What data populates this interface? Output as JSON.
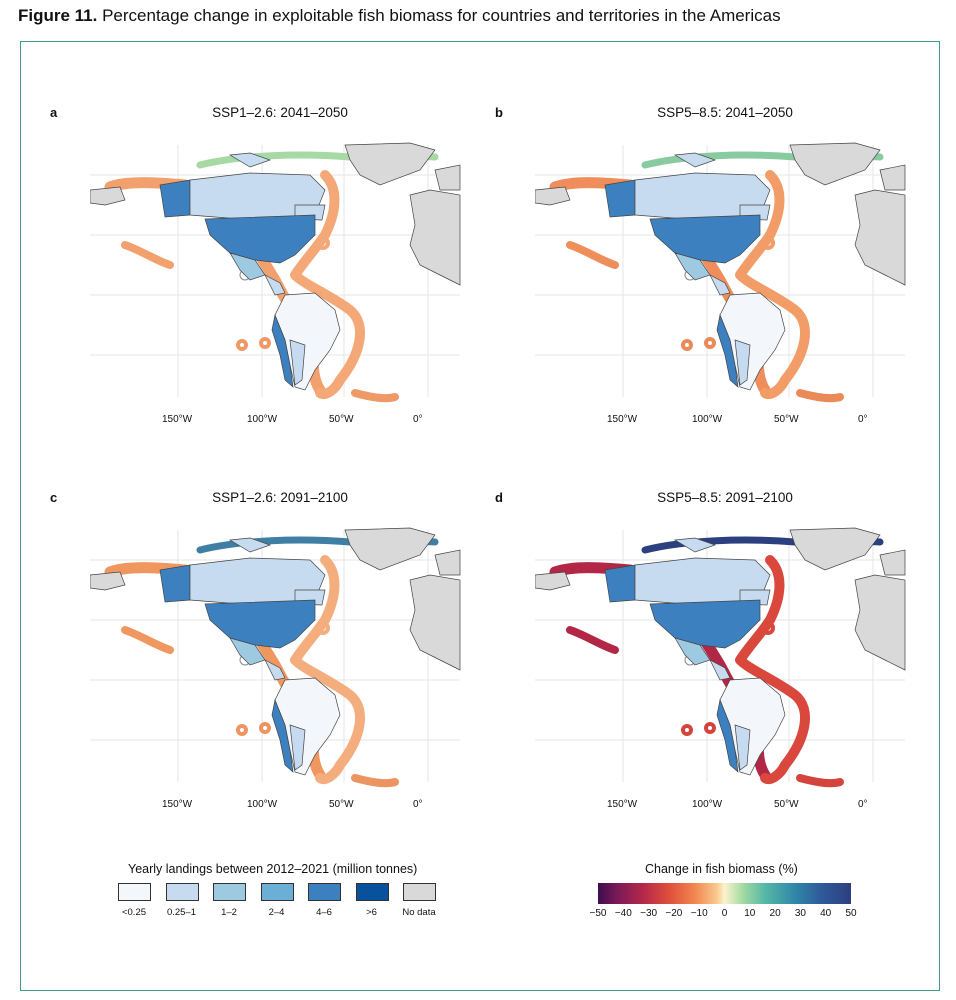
{
  "figure_title_bold": "Figure 11.",
  "figure_title_rest": " Percentage change in exploitable fish biomass for countries and territories in the Americas",
  "panels": [
    {
      "label": "a",
      "title": "SSP1–2.6: 2041–2050",
      "ring_colors": {
        "pacific": "#f2a06d",
        "atlantic": "#f4a877",
        "arctic": "#a6d9a4",
        "south": "#ee9a66"
      }
    },
    {
      "label": "b",
      "title": "SSP5–8.5: 2041–2050",
      "ring_colors": {
        "pacific": "#ef8e5a",
        "atlantic": "#f29d67",
        "arctic": "#89cba0",
        "south": "#ea8a58"
      }
    },
    {
      "label": "c",
      "title": "SSP1–2.6: 2091–2100",
      "ring_colors": {
        "pacific": "#f0975f",
        "atlantic": "#f4ad7d",
        "arctic": "#3f7fa3",
        "south": "#ec9462"
      }
    },
    {
      "label": "d",
      "title": "SSP5–8.5: 2091–2100",
      "ring_colors": {
        "pacific": "#b32746",
        "atlantic": "#d9473d",
        "arctic": "#2c3f7e",
        "south": "#d4443c"
      }
    }
  ],
  "x_ticks": [
    "150°W",
    "100°W",
    "50°W",
    "0°"
  ],
  "landings_legend": {
    "title": "Yearly landings between 2012–2021 (million tonnes)",
    "items": [
      {
        "label": "<0.25",
        "color": "#f3f7fc"
      },
      {
        "label": "0.25–1",
        "color": "#c6dbef"
      },
      {
        "label": "1–2",
        "color": "#9ecae1"
      },
      {
        "label": "2–4",
        "color": "#6baed6"
      },
      {
        "label": "4–6",
        "color": "#3c80c0"
      },
      {
        "label": ">6",
        "color": "#08519c"
      },
      {
        "label": "No data",
        "color": "#d9d9d9"
      }
    ]
  },
  "biomass_legend": {
    "title": "Change in fish biomass (%)",
    "ticks": [
      "−50",
      "−40",
      "−30",
      "−20",
      "−10",
      "0",
      "10",
      "20",
      "30",
      "40",
      "50"
    ]
  }
}
